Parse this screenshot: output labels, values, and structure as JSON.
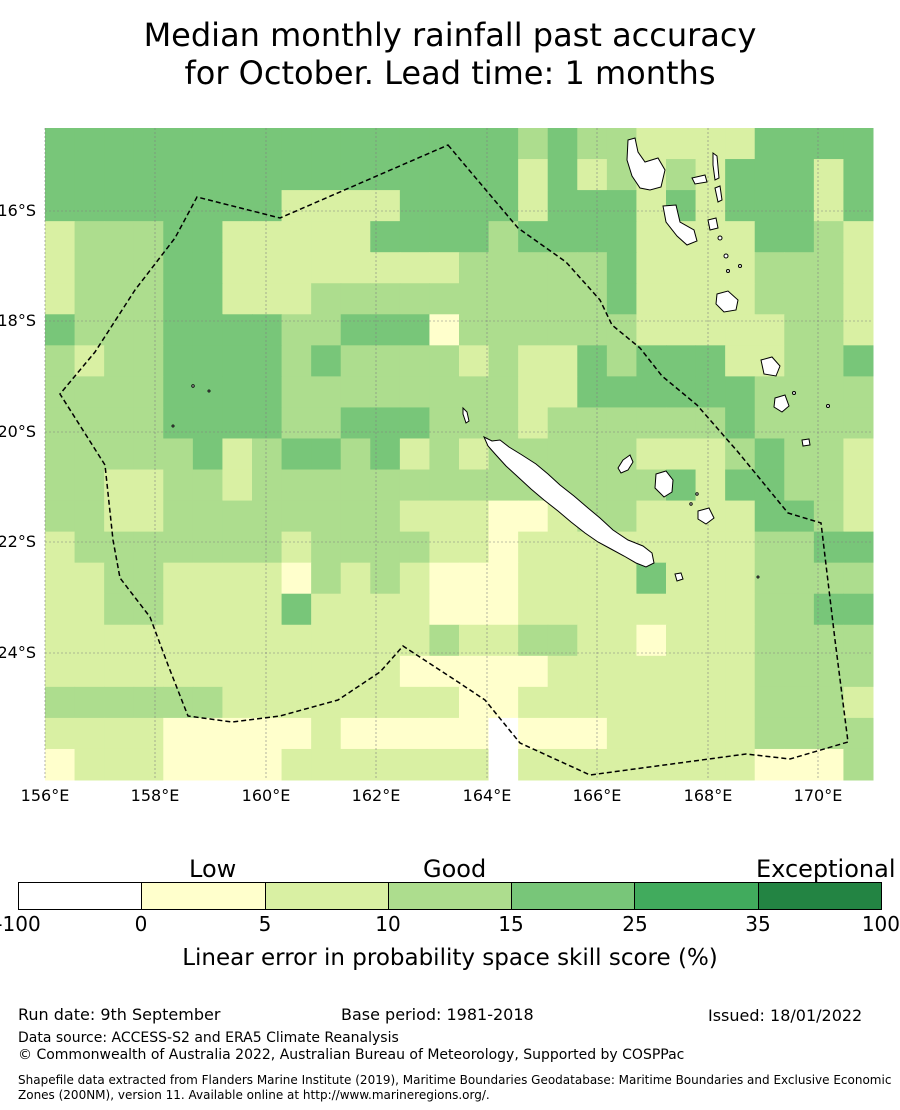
{
  "title": {
    "line1": "Median monthly rainfall past accuracy",
    "line2": "for October. Lead time: 1 months"
  },
  "map": {
    "lat_labels": [
      "16°S",
      "18°S",
      "20°S",
      "22°S",
      "24°S"
    ],
    "lon_labels": [
      "156°E",
      "158°E",
      "160°E",
      "162°E",
      "164°E",
      "166°E",
      "168°E",
      "170°E"
    ],
    "colors": {
      "neg": "#ffffff",
      "c0": "#ffffcc",
      "c5": "#d9f0a3",
      "c10": "#addd8e",
      "c15": "#78c679",
      "c25": "#41ab5d",
      "c35": "#238443",
      "land": "#ffffff",
      "coast": "#000000",
      "boundary": "#000000",
      "grid": "#808080"
    }
  },
  "legend": {
    "class_labels": [
      "Low",
      "Good",
      "Exceptional"
    ],
    "ticks": [
      "-100",
      "0",
      "5",
      "10",
      "15",
      "25",
      "35",
      "100"
    ],
    "colors": [
      "#ffffff",
      "#ffffcc",
      "#d9f0a3",
      "#addd8e",
      "#78c679",
      "#41ab5d",
      "#238443"
    ],
    "label": "Linear error in probability space skill score (%)"
  },
  "footer": {
    "run_date": "Run date: 9th September",
    "base_period": "Base period: 1981-2018",
    "issued": "Issued: 18/01/2022",
    "data_source": "Data source: ACCESS-S2 and ERA5 Climate Reanalysis",
    "copyright": "© Commonwealth of Australia 2022, Australian Bureau of Meteorology, Supported by COSPPac",
    "shapefile_line1": "Shapefile data extracted from Flanders Marine Institute (2019), Maritime Boundaries Geodatabase: Maritime Boundaries and Exclusive Economic",
    "shapefile_line2": "Zones (200NM), version 11. Available online at http://www.marineregions.org/."
  }
}
